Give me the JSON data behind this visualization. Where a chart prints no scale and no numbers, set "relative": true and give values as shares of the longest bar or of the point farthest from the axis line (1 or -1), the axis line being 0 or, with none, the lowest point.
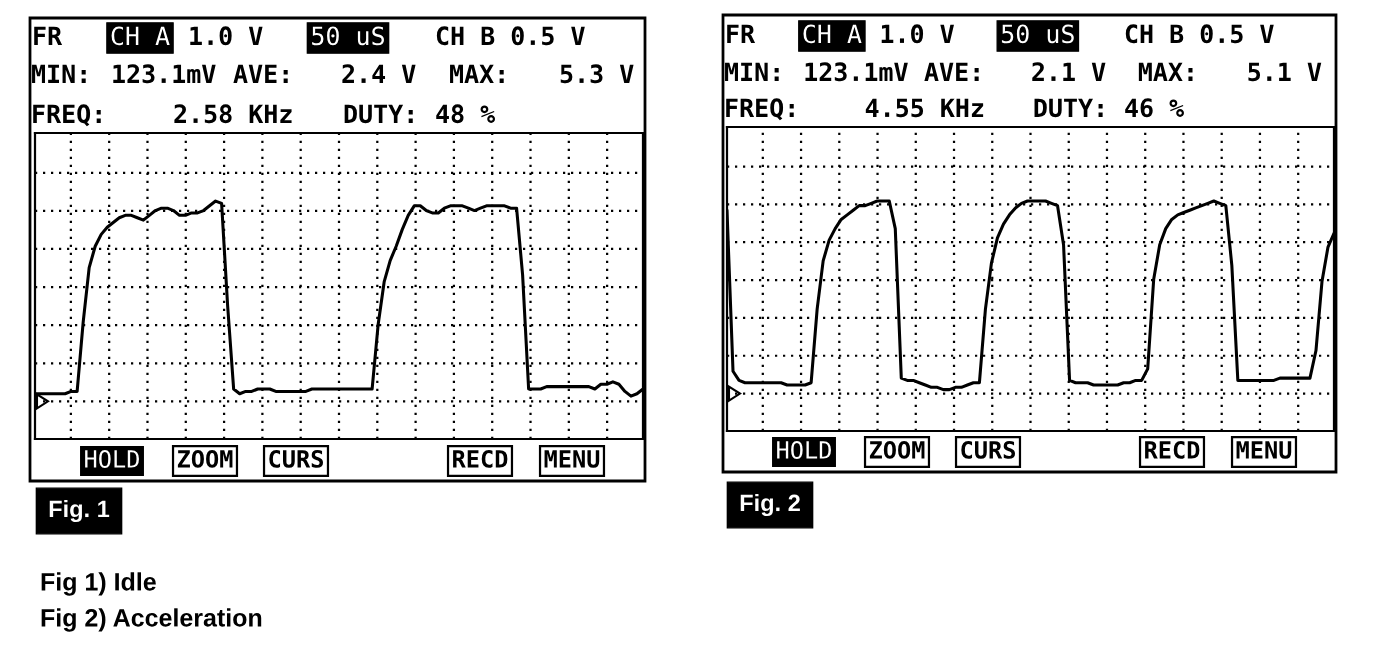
{
  "chart_data": [
    {
      "type": "line",
      "title": "Fig. 1",
      "relative": true,
      "grid": true,
      "annotations": [
        "FR",
        "CH A",
        "1.0 V",
        "50 uS",
        "CH B 0.5 V",
        "MIN:",
        "123.1mV",
        "AVE:",
        "2.4 V",
        "MAX:",
        "5.3 V",
        "FREQ:",
        "2.58 KHz",
        "DUTY:",
        "48 %",
        "HOLD",
        "ZOOM",
        "CURS",
        "RECD",
        "MENU",
        "Fig 1) Idle",
        "Fig 2) Acceleration"
      ],
      "categories": [
        null,
        null,
        null,
        null,
        null,
        null,
        null,
        null,
        null,
        null,
        null,
        null,
        null,
        null,
        null,
        null,
        null,
        null,
        null,
        null,
        null,
        null,
        null,
        null,
        null,
        null,
        null,
        null,
        null,
        null,
        null,
        null,
        null,
        null,
        null,
        null,
        null,
        null,
        null,
        null,
        null,
        null,
        null,
        null,
        null,
        null,
        null,
        null,
        null,
        null,
        null,
        null,
        null,
        null,
        null,
        null,
        null,
        null,
        null,
        null,
        null,
        null,
        null,
        null,
        null,
        null,
        null,
        null,
        null,
        null,
        null,
        null,
        null,
        null,
        null,
        null,
        null,
        null,
        null,
        null,
        null,
        null,
        null,
        null,
        null,
        null,
        null,
        null,
        null,
        null,
        null,
        null,
        null,
        null,
        null,
        null,
        null,
        null,
        null,
        null,
        null,
        null
      ],
      "series": [
        {
          "color": "#000000",
          "values": [
            0.19,
            0.19,
            0.19,
            0.19,
            0.19,
            0.19,
            0.2,
            0.2,
            0.49,
            0.72,
            0.81,
            0.86,
            0.89,
            0.91,
            0.93,
            0.94,
            0.94,
            0.93,
            0.92,
            0.94,
            0.96,
            0.97,
            0.97,
            0.96,
            0.94,
            0.94,
            0.95,
            0.95,
            0.96,
            0.98,
            1.0,
            0.99,
            0.56,
            0.21,
            0.19,
            0.2,
            0.2,
            0.21,
            0.21,
            0.21,
            0.2,
            0.2,
            0.2,
            0.2,
            0.2,
            0.2,
            0.21,
            0.21,
            0.21,
            0.21,
            0.21,
            0.21,
            0.21,
            0.21,
            0.21,
            0.21,
            0.21,
            0.48,
            0.66,
            0.75,
            0.81,
            0.88,
            0.94,
            0.98,
            0.98,
            0.96,
            0.95,
            0.95,
            0.97,
            0.98,
            0.98,
            0.98,
            0.97,
            0.96,
            0.97,
            0.98,
            0.98,
            0.98,
            0.98,
            0.97,
            0.97,
            0.69,
            0.21,
            0.21,
            0.21,
            0.22,
            0.22,
            0.22,
            0.22,
            0.22,
            0.22,
            0.22,
            0.22,
            0.21,
            0.23,
            0.23,
            0.24,
            0.23,
            0.2,
            0.18,
            0.19,
            0.21
          ]
        }
      ]
    },
    {
      "type": "line",
      "title": "Fig. 2",
      "relative": true,
      "grid": true,
      "annotations": [
        "FR",
        "CH A",
        "1.0 V",
        "50 uS",
        "CH B 0.5 V",
        "MIN:",
        "123.1mV",
        "AVE:",
        "2.1 V",
        "MAX:",
        "5.1 V",
        "FREQ:",
        "4.55 KHz",
        "DUTY:",
        "46 %",
        "HOLD",
        "ZOOM",
        "CURS",
        "RECD",
        "MENU"
      ],
      "categories": [
        null,
        null,
        null,
        null,
        null,
        null,
        null,
        null,
        null,
        null,
        null,
        null,
        null,
        null,
        null,
        null,
        null,
        null,
        null,
        null,
        null,
        null,
        null,
        null,
        null,
        null,
        null,
        null,
        null,
        null,
        null,
        null,
        null,
        null,
        null,
        null,
        null,
        null,
        null,
        null,
        null,
        null,
        null,
        null,
        null,
        null,
        null,
        null,
        null,
        null,
        null,
        null,
        null,
        null,
        null,
        null,
        null,
        null,
        null,
        null,
        null,
        null,
        null,
        null,
        null,
        null,
        null,
        null,
        null,
        null,
        null,
        null,
        null,
        null,
        null,
        null,
        null,
        null,
        null,
        null,
        null,
        null,
        null,
        null,
        null,
        null,
        null,
        null,
        null,
        null,
        null,
        null,
        null,
        null,
        null,
        null,
        null,
        null,
        null,
        null,
        null,
        null
      ],
      "series": [
        {
          "color": "#000000",
          "values": [
            0.96,
            0.26,
            0.22,
            0.21,
            0.21,
            0.21,
            0.21,
            0.21,
            0.21,
            0.21,
            0.2,
            0.2,
            0.2,
            0.2,
            0.21,
            0.53,
            0.74,
            0.83,
            0.88,
            0.92,
            0.94,
            0.96,
            0.98,
            0.98,
            0.99,
            1.0,
            1.0,
            1.0,
            0.88,
            0.23,
            0.22,
            0.22,
            0.21,
            0.2,
            0.19,
            0.19,
            0.18,
            0.18,
            0.19,
            0.19,
            0.2,
            0.21,
            0.21,
            0.53,
            0.73,
            0.84,
            0.9,
            0.94,
            0.97,
            0.99,
            1.0,
            1.0,
            1.0,
            1.0,
            0.99,
            0.98,
            0.81,
            0.22,
            0.21,
            0.21,
            0.21,
            0.2,
            0.2,
            0.2,
            0.2,
            0.2,
            0.21,
            0.21,
            0.22,
            0.22,
            0.27,
            0.66,
            0.81,
            0.88,
            0.92,
            0.94,
            0.95,
            0.96,
            0.97,
            0.98,
            0.99,
            1.0,
            0.99,
            0.98,
            0.72,
            0.22,
            0.22,
            0.22,
            0.22,
            0.22,
            0.22,
            0.22,
            0.23,
            0.23,
            0.23,
            0.23,
            0.23,
            0.23,
            0.35,
            0.65,
            0.8,
            0.86
          ]
        }
      ]
    }
  ]
}
